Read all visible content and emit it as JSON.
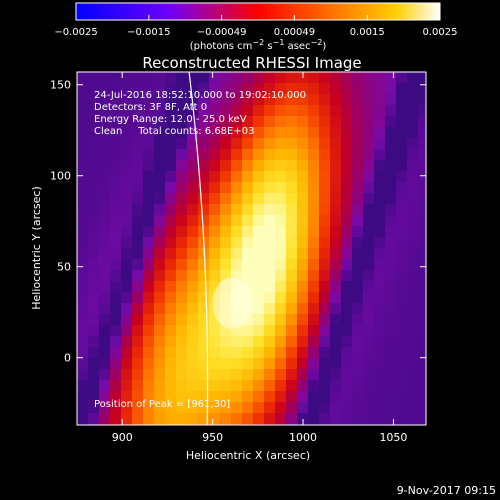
{
  "colorbar": {
    "ticks": [
      "−0.0025",
      "−0.0015",
      "−0.00049",
      "0.00049",
      "0.0015",
      "0.0025"
    ],
    "units_prefix": "(photons cm",
    "units_sup1": "−2",
    "units_mid1": " s",
    "units_sup2": "−1",
    "units_mid2": " asec",
    "units_sup3": "−2",
    "units_suffix": ")",
    "colors": [
      "#0000ff",
      "#6a00ff",
      "#ff0000",
      "#ff7000",
      "#ffd000",
      "#ffffff"
    ]
  },
  "chart_data": {
    "type": "heatmap",
    "title": "Reconstructed RHESSI Image",
    "xlabel": "Heliocentric X (arcsec)",
    "ylabel": "Heliocentric Y (arcsec)",
    "xlim": [
      875,
      1068
    ],
    "ylim": [
      -37,
      157
    ],
    "xticks": [
      900,
      950,
      1000,
      1050
    ],
    "yticks": [
      0,
      50,
      100,
      150
    ],
    "annotations": [
      "24-Jul-2016 18:52:10.000 to 19:02:10.000",
      "Detectors: 3F 8F, Att 0",
      "Energy Range: 12.0 - 25.0 keV",
      "Clean     Total counts: 6.68E+03"
    ],
    "peak_label": "Position of Peak = [961,30]",
    "peak": [
      961,
      30
    ],
    "limb_x_at_ylim": [
      937,
      947
    ]
  },
  "footer": {
    "timestamp": "9-Nov-2017 09:15"
  }
}
